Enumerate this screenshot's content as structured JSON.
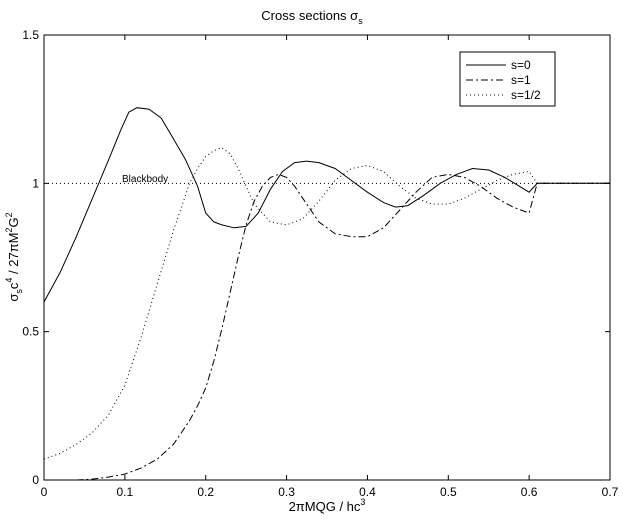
{
  "chart_data": {
    "type": "line",
    "title": "Cross sections",
    "title_symbol": "σ",
    "title_sub": "s",
    "xlabel": {
      "pre": "2πMQG / hc",
      "sup": "3"
    },
    "ylabel": {
      "s1": "σ",
      "sub1": "s",
      "s2": "c",
      "sup2": "4",
      "s3": " / 27πM",
      "sup3": "2",
      "s4": "G",
      "sup4": "2"
    },
    "xlim": [
      0,
      0.7
    ],
    "ylim": [
      0,
      1.5
    ],
    "xticks": [
      {
        "v": 0,
        "label": "0"
      },
      {
        "v": 0.1,
        "label": "0.1"
      },
      {
        "v": 0.2,
        "label": "0.2"
      },
      {
        "v": 0.3,
        "label": "0.3"
      },
      {
        "v": 0.4,
        "label": "0.4"
      },
      {
        "v": 0.5,
        "label": "0.5"
      },
      {
        "v": 0.6,
        "label": "0.6"
      },
      {
        "v": 0.7,
        "label": "0.7"
      }
    ],
    "yticks": [
      {
        "v": 0,
        "label": "0"
      },
      {
        "v": 0.5,
        "label": "0.5"
      },
      {
        "v": 1,
        "label": "1"
      },
      {
        "v": 1.5,
        "label": "1.5"
      }
    ],
    "grid": false,
    "legend_position": "top-right",
    "reference_line": {
      "y": 1.0,
      "style": "dotted",
      "label": "Blackbody",
      "label_at": [
        0.125,
        1.005
      ]
    },
    "series": [
      {
        "name": "s=0",
        "style": "solid",
        "x": [
          0,
          0.02,
          0.04,
          0.06,
          0.08,
          0.095,
          0.105,
          0.115,
          0.13,
          0.145,
          0.16,
          0.175,
          0.19,
          0.2,
          0.21,
          0.22,
          0.235,
          0.25,
          0.265,
          0.28,
          0.295,
          0.31,
          0.325,
          0.34,
          0.36,
          0.38,
          0.4,
          0.42,
          0.435,
          0.45,
          0.47,
          0.49,
          0.51,
          0.53,
          0.55,
          0.57,
          0.585,
          0.6,
          0.61,
          0.65,
          0.7
        ],
        "y": [
          0.6,
          0.7,
          0.82,
          0.95,
          1.08,
          1.18,
          1.24,
          1.255,
          1.25,
          1.22,
          1.15,
          1.08,
          0.99,
          0.9,
          0.87,
          0.86,
          0.85,
          0.855,
          0.9,
          0.98,
          1.04,
          1.07,
          1.075,
          1.07,
          1.05,
          1.01,
          0.97,
          0.935,
          0.92,
          0.925,
          0.96,
          1.0,
          1.03,
          1.05,
          1.045,
          1.02,
          0.995,
          0.97,
          1.0,
          1.0,
          1.0
        ]
      },
      {
        "name": "s=1",
        "style": "dashdot",
        "x": [
          0.04,
          0.06,
          0.08,
          0.1,
          0.12,
          0.14,
          0.16,
          0.17,
          0.18,
          0.19,
          0.2,
          0.21,
          0.22,
          0.23,
          0.24,
          0.25,
          0.26,
          0.27,
          0.28,
          0.29,
          0.3,
          0.31,
          0.32,
          0.34,
          0.36,
          0.38,
          0.4,
          0.42,
          0.44,
          0.46,
          0.48,
          0.5,
          0.52,
          0.54,
          0.56,
          0.58,
          0.6,
          0.61,
          0.65,
          0.7
        ],
        "y": [
          0.0,
          0.003,
          0.01,
          0.02,
          0.04,
          0.07,
          0.12,
          0.16,
          0.2,
          0.25,
          0.31,
          0.4,
          0.51,
          0.63,
          0.75,
          0.86,
          0.94,
          0.99,
          1.02,
          1.03,
          1.02,
          0.99,
          0.95,
          0.87,
          0.83,
          0.82,
          0.82,
          0.85,
          0.91,
          0.97,
          1.02,
          1.03,
          1.02,
          0.99,
          0.95,
          0.92,
          0.9,
          1.0,
          1.0,
          1.0
        ]
      },
      {
        "name": "s=1/2",
        "style": "dotted",
        "x": [
          0,
          0.02,
          0.04,
          0.06,
          0.08,
          0.1,
          0.12,
          0.14,
          0.16,
          0.17,
          0.18,
          0.19,
          0.2,
          0.21,
          0.22,
          0.23,
          0.24,
          0.25,
          0.26,
          0.28,
          0.3,
          0.32,
          0.34,
          0.36,
          0.38,
          0.4,
          0.42,
          0.44,
          0.46,
          0.48,
          0.5,
          0.52,
          0.54,
          0.56,
          0.58,
          0.6,
          0.61,
          0.65,
          0.7
        ],
        "y": [
          0.07,
          0.09,
          0.12,
          0.16,
          0.22,
          0.32,
          0.48,
          0.66,
          0.84,
          0.92,
          1.0,
          1.05,
          1.09,
          1.11,
          1.12,
          1.1,
          1.05,
          0.99,
          0.93,
          0.87,
          0.86,
          0.88,
          0.94,
          1.01,
          1.05,
          1.06,
          1.04,
          0.99,
          0.95,
          0.93,
          0.93,
          0.95,
          0.98,
          1.01,
          1.03,
          1.04,
          1.0,
          1.0,
          1.0
        ]
      }
    ]
  }
}
